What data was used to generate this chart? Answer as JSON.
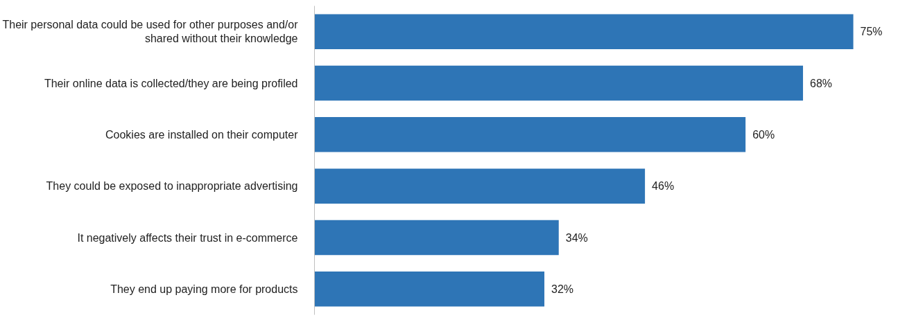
{
  "chart_data": {
    "type": "bar",
    "orientation": "horizontal",
    "categories": [
      "Their personal data could be used for other purposes and/or shared without their knowledge",
      "Their online data is collected/they are being profiled",
      "Cookies are installed on their computer",
      "They could be exposed to inappropriate advertising",
      "It negatively affects their trust in e-commerce",
      "They end up paying more for products"
    ],
    "values": [
      75,
      68,
      60,
      46,
      34,
      32
    ],
    "value_labels": [
      "75%",
      "68%",
      "60%",
      "46%",
      "34%",
      "32%"
    ],
    "color": "#2e75b6",
    "grid": false
  }
}
